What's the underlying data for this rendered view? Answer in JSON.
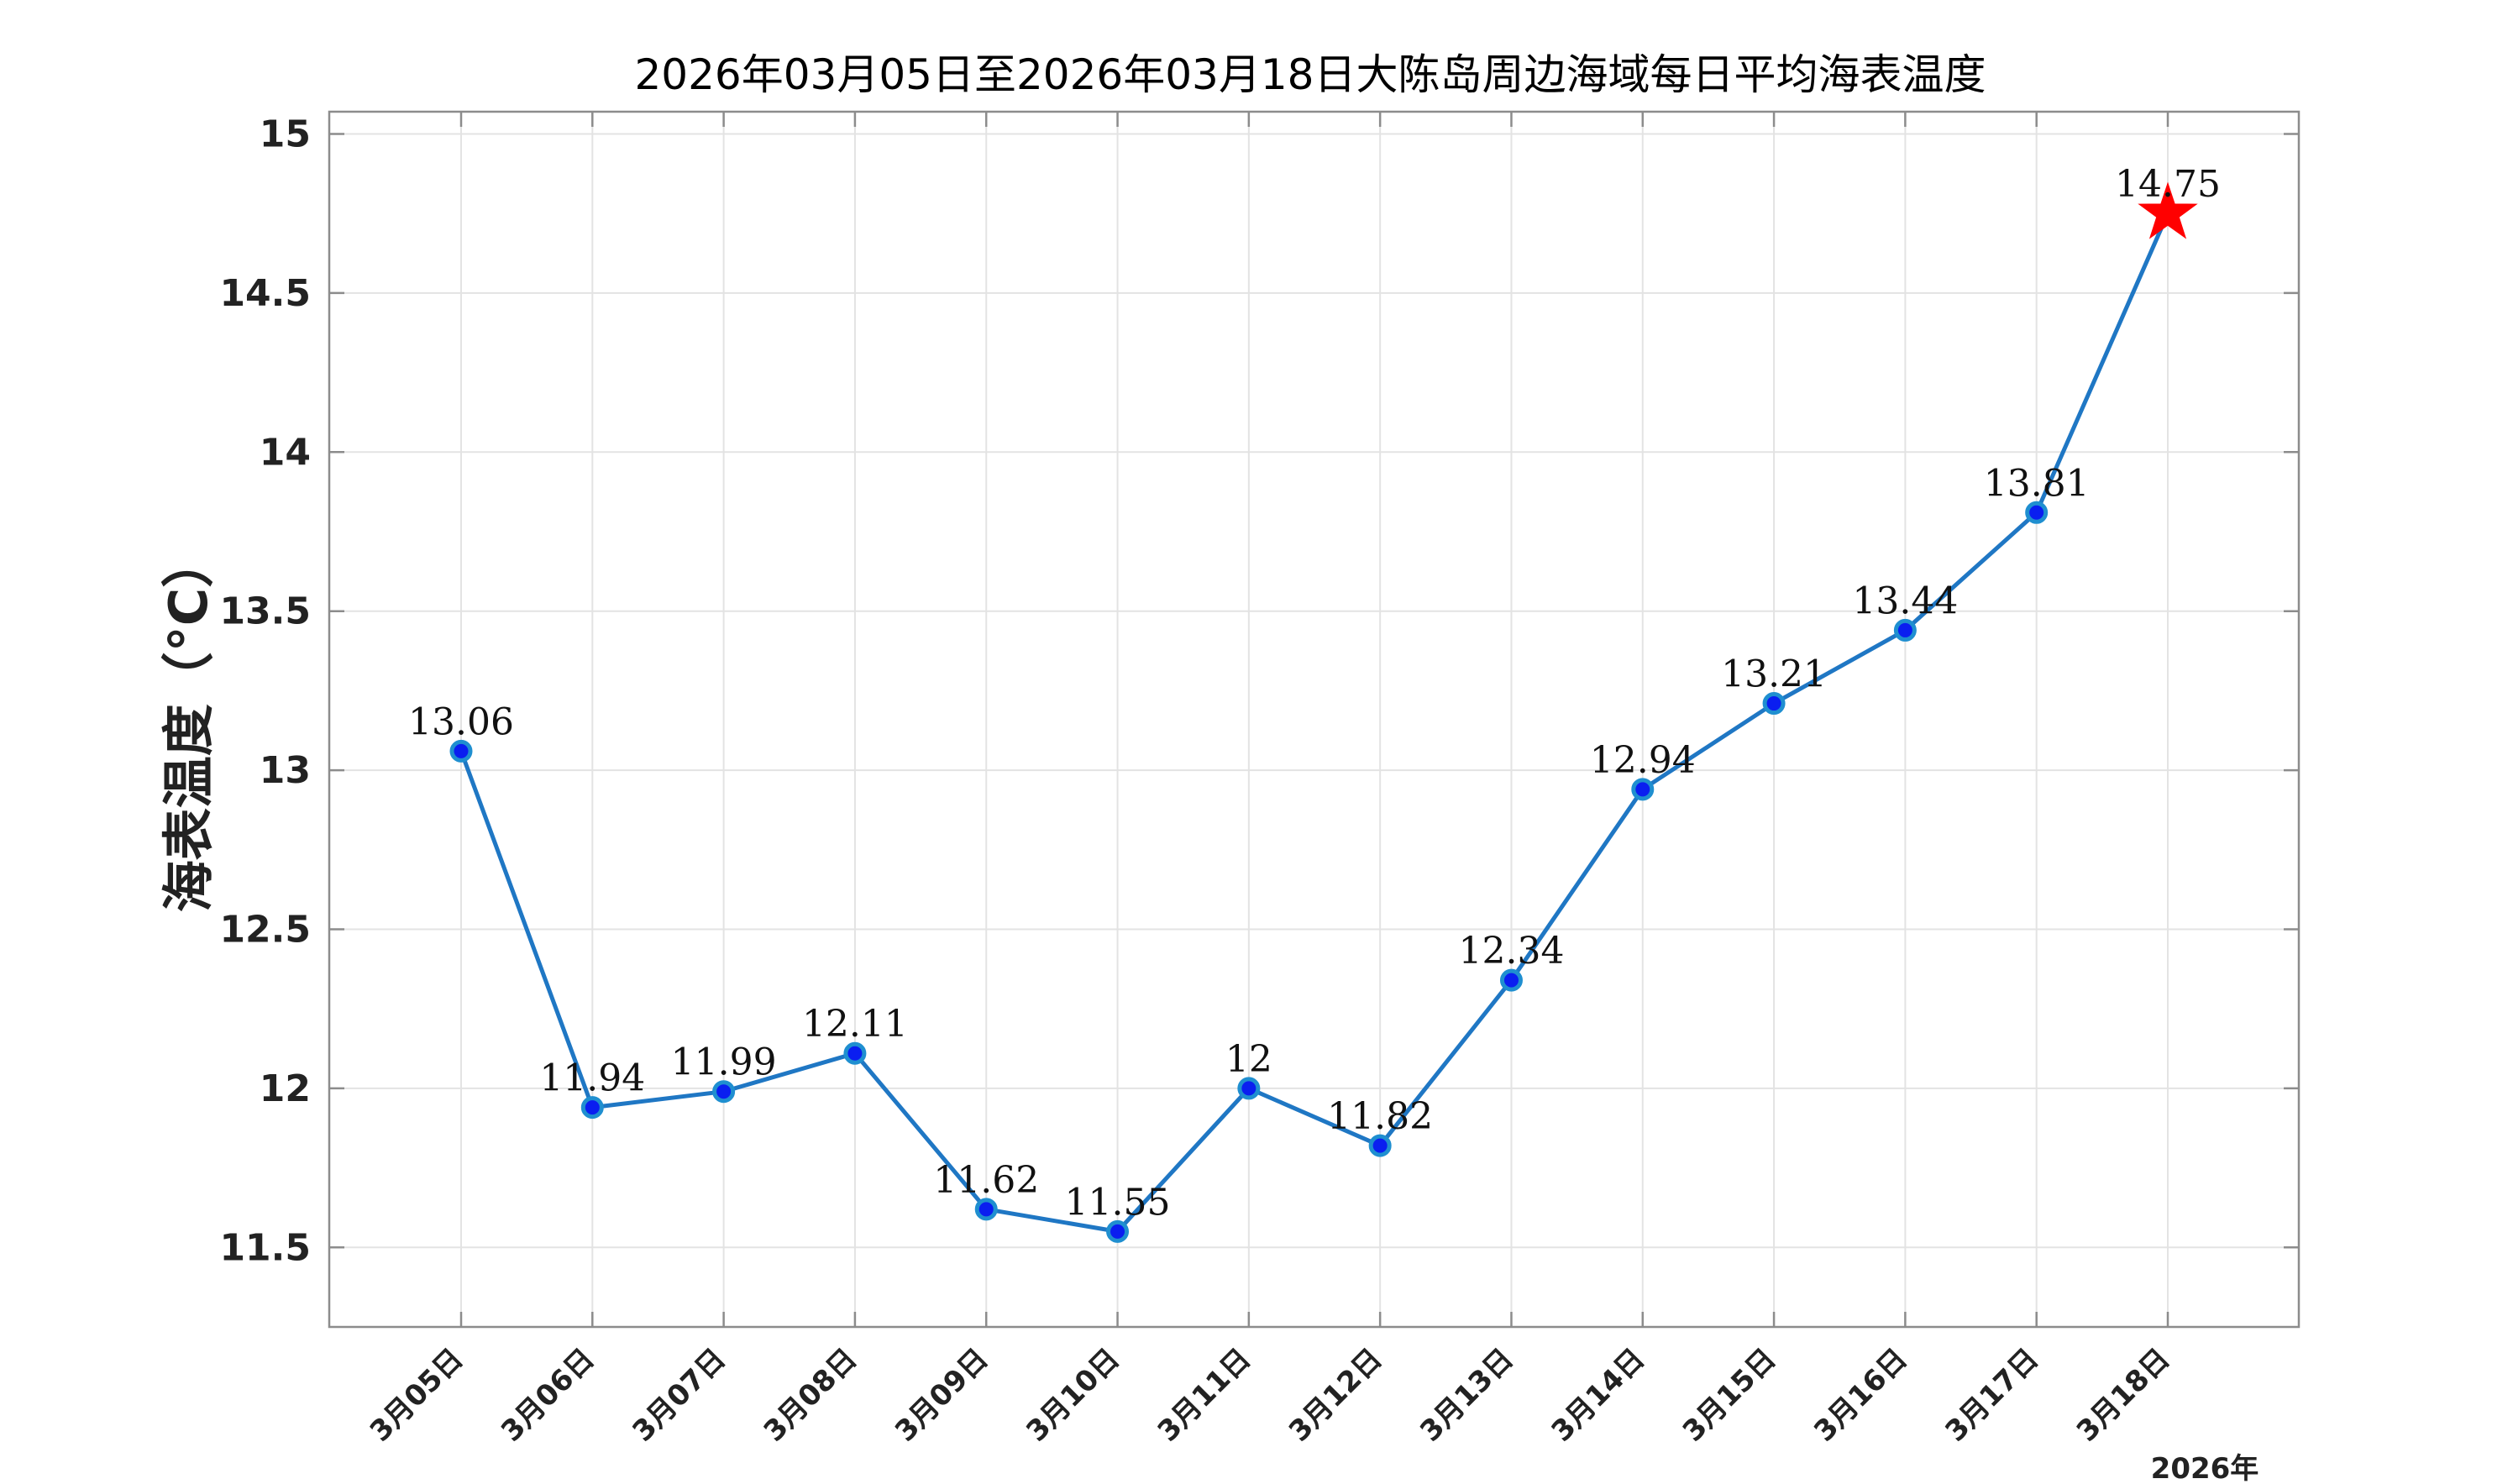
{
  "chart_data": {
    "type": "line",
    "title": "2026年03月05日至2026年03月18日大陈岛周边海域每日平均海表温度",
    "ylabel": "海表温度（°C）",
    "xsublabel": "2026年",
    "categories": [
      "3月05日",
      "3月06日",
      "3月07日",
      "3月08日",
      "3月09日",
      "3月10日",
      "3月11日",
      "3月12日",
      "3月13日",
      "3月14日",
      "3月15日",
      "3月16日",
      "3月17日",
      "3月18日"
    ],
    "values": [
      13.06,
      11.94,
      11.99,
      12.11,
      11.62,
      11.55,
      12.0,
      11.82,
      12.34,
      12.94,
      13.21,
      13.44,
      13.81,
      14.75
    ],
    "value_labels": [
      "13.06",
      "11.94",
      "11.99",
      "12.11",
      "11.62",
      "11.55",
      "12",
      "11.82",
      "12.34",
      "12.94",
      "13.21",
      "13.44",
      "13.81",
      "14.75"
    ],
    "ylim": [
      11.25,
      15.07
    ],
    "yticks": [
      11.5,
      12,
      12.5,
      13,
      13.5,
      14,
      14.5,
      15
    ],
    "ytick_labels": [
      "11.5",
      "12",
      "12.5",
      "13",
      "13.5",
      "14",
      "14.5",
      "15"
    ],
    "grid": true,
    "line_color": "#1f77c4",
    "marker_color": "#0a1ef0",
    "highlight_last": {
      "marker": "star-icon",
      "color": "#ff0000"
    }
  }
}
